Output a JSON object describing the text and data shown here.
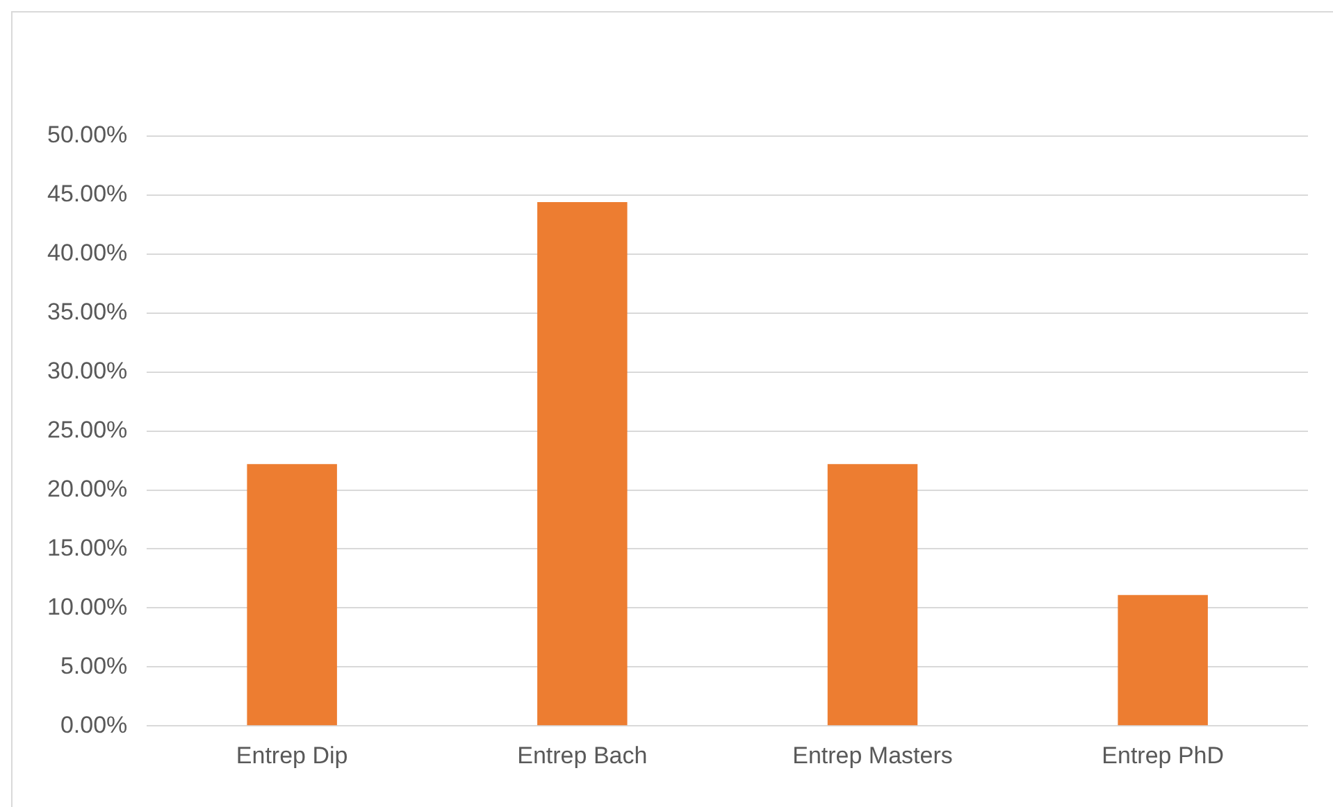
{
  "chart_data": {
    "type": "bar",
    "categories": [
      "Entrep Dip",
      "Entrep Bach",
      "Entrep Masters",
      "Entrep PhD"
    ],
    "values": [
      22.2,
      44.4,
      22.2,
      11.1
    ],
    "color": "#ed7d31",
    "ylim": [
      0,
      50
    ],
    "yticks": [
      {
        "value": 0,
        "label": "0.00%"
      },
      {
        "value": 5,
        "label": "5.00%"
      },
      {
        "value": 10,
        "label": "10.00%"
      },
      {
        "value": 15,
        "label": "15.00%"
      },
      {
        "value": 20,
        "label": "20.00%"
      },
      {
        "value": 25,
        "label": "25.00%"
      },
      {
        "value": 30,
        "label": "30.00%"
      },
      {
        "value": 35,
        "label": "35.00%"
      },
      {
        "value": 40,
        "label": "40.00%"
      },
      {
        "value": 45,
        "label": "45.00%"
      },
      {
        "value": 50,
        "label": "50.00%"
      }
    ],
    "grid": "y",
    "legend": false
  }
}
